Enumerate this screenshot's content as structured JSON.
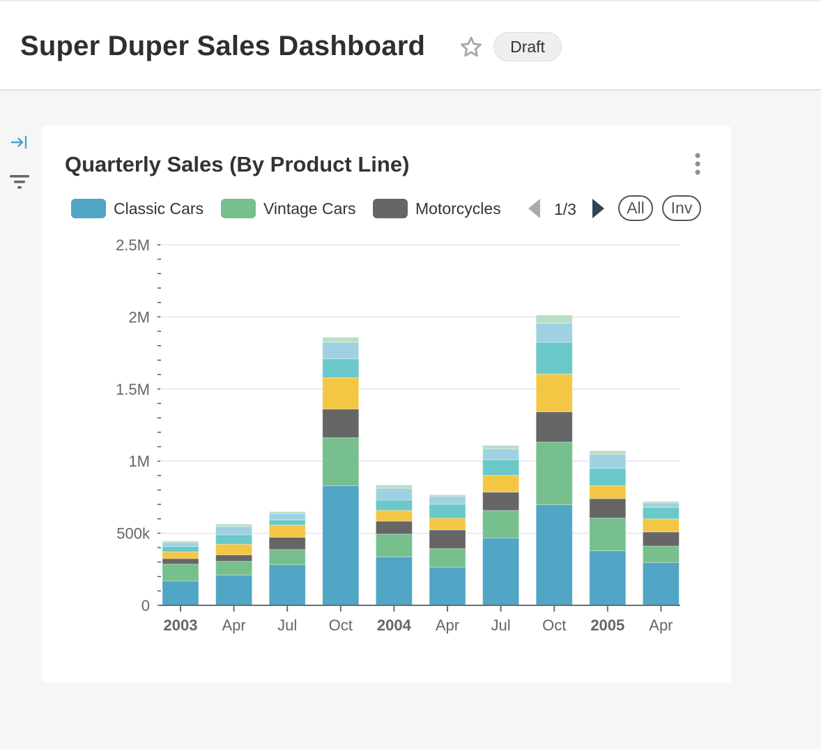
{
  "header": {
    "title": "Super Duper Sales Dashboard",
    "badge": "Draft"
  },
  "card": {
    "title": "Quarterly Sales (By Product Line)"
  },
  "legend": {
    "items": [
      {
        "label": "Classic Cars",
        "color": "#51a5c5"
      },
      {
        "label": "Vintage Cars",
        "color": "#77bf8c"
      },
      {
        "label": "Motorcycles",
        "color": "#666666"
      }
    ],
    "page": "1/3",
    "all_label": "All",
    "inv_label": "Inv"
  },
  "chart_data": {
    "type": "bar",
    "stacked": true,
    "title": "",
    "xlabel": "",
    "ylabel": "",
    "ylim": [
      0,
      2500000
    ],
    "y_ticks": [
      "0",
      "500k",
      "1M",
      "1.5M",
      "2M",
      "2.5M"
    ],
    "grid": true,
    "legend_position": "top",
    "categories": [
      "2003",
      "Apr",
      "Jul",
      "Oct",
      "2004",
      "Apr",
      "Jul",
      "Oct",
      "2005",
      "Apr"
    ],
    "bold_categories": [
      "2003",
      "2004",
      "2005"
    ],
    "series": [
      {
        "name": "Classic Cars",
        "color": "#51a5c5",
        "values": [
          169000,
          210000,
          282000,
          830000,
          337000,
          265000,
          467000,
          698000,
          379000,
          297000
        ]
      },
      {
        "name": "Vintage Cars",
        "color": "#77bf8c",
        "values": [
          117000,
          95000,
          105000,
          332000,
          157000,
          128000,
          191000,
          434000,
          226000,
          114000
        ]
      },
      {
        "name": "Motorcycles",
        "color": "#666666",
        "values": [
          38000,
          45000,
          85000,
          199000,
          90000,
          130000,
          127000,
          210000,
          135000,
          98000
        ]
      },
      {
        "color": "#f3c744",
        "values": [
          47000,
          74000,
          85000,
          217000,
          74000,
          81000,
          117000,
          262000,
          90000,
          91000
        ]
      },
      {
        "color": "#6ac8c8",
        "values": [
          37000,
          65000,
          35000,
          132000,
          72000,
          97000,
          108000,
          220000,
          120000,
          79000
        ]
      },
      {
        "color": "#a0d1e2",
        "values": [
          28000,
          58000,
          44000,
          114000,
          82000,
          55000,
          74000,
          132000,
          97000,
          32000
        ]
      },
      {
        "color": "#b9e0c5",
        "values": [
          10000,
          17000,
          14000,
          35000,
          23000,
          11000,
          25000,
          57000,
          25000,
          10000
        ]
      }
    ]
  }
}
